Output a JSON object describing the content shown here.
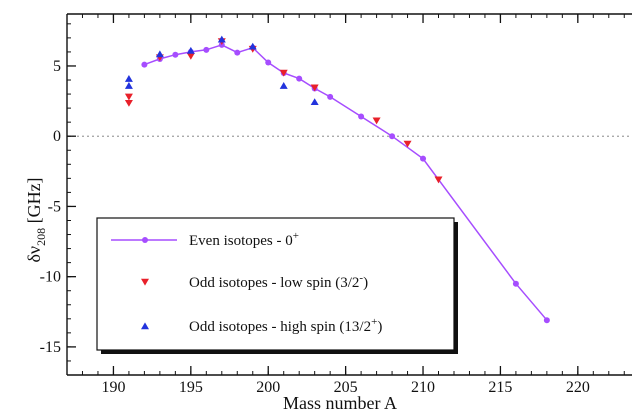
{
  "chart_data": {
    "type": "scatter",
    "title": "",
    "xlabel": "Mass number A",
    "ylabel": {
      "main": "δν",
      "sub": "208",
      "unit": " [GHz]"
    },
    "xlim": [
      187,
      223.5
    ],
    "ylim": [
      -17,
      8.7
    ],
    "x_ticks": [
      190,
      195,
      200,
      205,
      210,
      215,
      220
    ],
    "y_ticks": [
      5,
      0,
      -5,
      -10,
      -15
    ],
    "x_tick_labels": [
      "190",
      "195",
      "200",
      "205",
      "210",
      "215",
      "220"
    ],
    "y_tick_labels": [
      "5",
      "0",
      "-5",
      "-10",
      "-15"
    ],
    "x_minor_step": 1,
    "y_minor_step": 1,
    "grid": false,
    "legend_position": "bottom-left",
    "series": [
      {
        "name": "Even isotopes - 0",
        "superscript": "+",
        "marker": "circle",
        "color": "#a64dff",
        "line": true,
        "x": [
          192,
          193,
          194,
          195,
          196,
          197,
          198,
          199,
          200,
          201,
          202,
          203,
          204,
          206,
          208,
          210,
          216,
          218
        ],
        "y": [
          5.1,
          5.5,
          5.8,
          6.0,
          6.15,
          6.5,
          5.95,
          6.3,
          5.25,
          4.5,
          4.1,
          3.4,
          2.8,
          1.4,
          0.0,
          -1.6,
          -10.5,
          -13.1
        ]
      },
      {
        "name": "Odd isotopes - low spin (3/2",
        "superscript": "-",
        "suffix": ")",
        "marker": "triangle-down",
        "color": "#e8202a",
        "line": false,
        "x": [
          191,
          191,
          193,
          195,
          197,
          199,
          201,
          203,
          207,
          209,
          211
        ],
        "y": [
          2.8,
          2.35,
          5.6,
          5.7,
          6.75,
          6.2,
          4.5,
          3.45,
          1.1,
          -0.55,
          -3.1
        ]
      },
      {
        "name": "Odd isotopes - high spin (13/2",
        "superscript": "+",
        "suffix": ")",
        "marker": "triangle-up",
        "color": "#2233dd",
        "line": false,
        "x": [
          191,
          191,
          193,
          195,
          197,
          199,
          201,
          203
        ],
        "y": [
          4.1,
          3.6,
          5.85,
          6.1,
          6.9,
          6.4,
          3.6,
          2.45
        ]
      }
    ]
  }
}
